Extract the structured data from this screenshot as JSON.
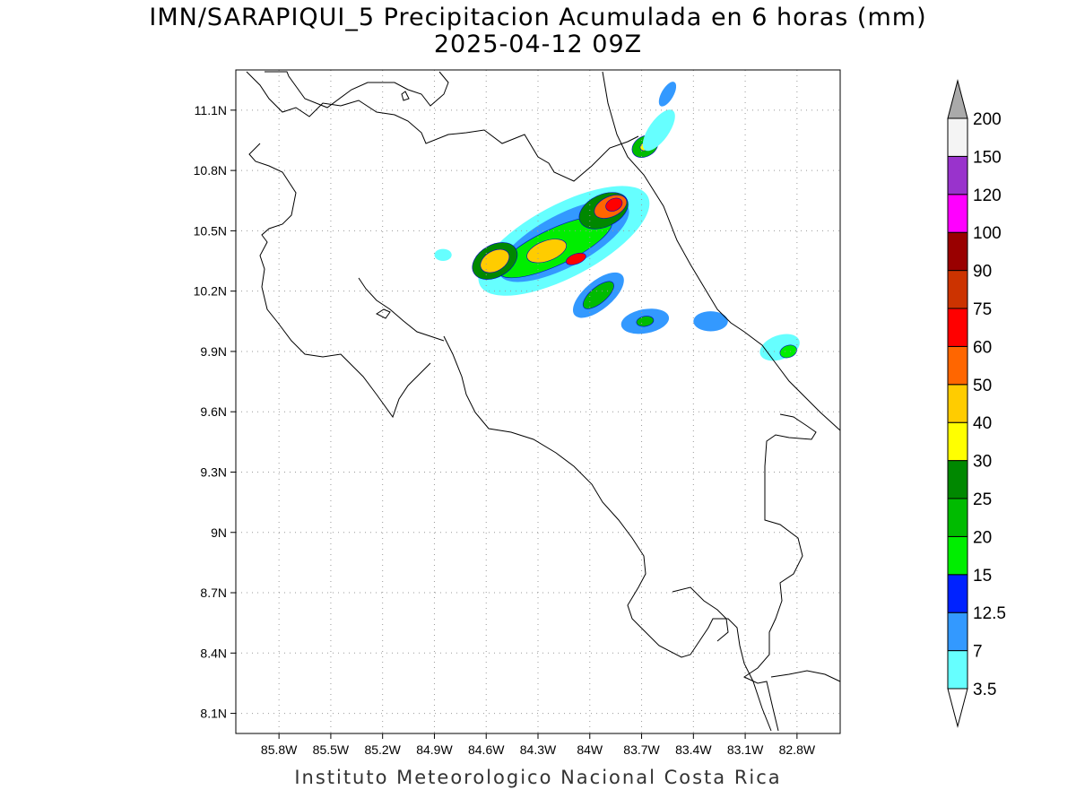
{
  "title": {
    "line1": "IMN/SARAPIQUI_5 Precipitacion Acumulada en 6 horas (mm)",
    "line2": "2025-04-12 09Z"
  },
  "footer": "Instituto Meteorologico Nacional Costa Rica",
  "map": {
    "lon_range": [
      -86.05,
      -82.55
    ],
    "lat_range": [
      8.0,
      11.3
    ],
    "lon_ticks": [
      {
        "v": -85.8,
        "label": "85.8W"
      },
      {
        "v": -85.5,
        "label": "85.5W"
      },
      {
        "v": -85.2,
        "label": "85.2W"
      },
      {
        "v": -84.9,
        "label": "84.9W"
      },
      {
        "v": -84.6,
        "label": "84.6W"
      },
      {
        "v": -84.3,
        "label": "84.3W"
      },
      {
        "v": -84.0,
        "label": "84W"
      },
      {
        "v": -83.7,
        "label": "83.7W"
      },
      {
        "v": -83.4,
        "label": "83.4W"
      },
      {
        "v": -83.1,
        "label": "83.1W"
      },
      {
        "v": -82.8,
        "label": "82.8W"
      }
    ],
    "lat_ticks": [
      {
        "v": 11.1,
        "label": "11.1N"
      },
      {
        "v": 10.8,
        "label": "10.8N"
      },
      {
        "v": 10.5,
        "label": "10.5N"
      },
      {
        "v": 10.2,
        "label": "10.2N"
      },
      {
        "v": 9.9,
        "label": "9.9N"
      },
      {
        "v": 9.6,
        "label": "9.6N"
      },
      {
        "v": 9.3,
        "label": "9.3N"
      },
      {
        "v": 9.0,
        "label": "9N"
      },
      {
        "v": 8.7,
        "label": "8.7N"
      },
      {
        "v": 8.4,
        "label": "8.4N"
      },
      {
        "v": 8.1,
        "label": "8.1N"
      }
    ],
    "grid": true
  },
  "colorbar": {
    "levels": [
      "3.5",
      "7",
      "12.5",
      "15",
      "20",
      "25",
      "30",
      "40",
      "50",
      "60",
      "75",
      "90",
      "100",
      "120",
      "150",
      "200"
    ],
    "colors": [
      "#66ffff",
      "#3399ff",
      "#0022ff",
      "#00ee00",
      "#00bb00",
      "#008800",
      "#ffff00",
      "#ffcc00",
      "#ff6600",
      "#ff0000",
      "#cc3300",
      "#990000",
      "#ff00ff",
      "#9933cc",
      "#f4f4f4"
    ],
    "upper_arrow_color": "#aaaaaa",
    "lower_arrow_color": "#ffffff"
  },
  "precip_cells": [
    {
      "lon": -84.15,
      "lat": 10.45,
      "rx": 0.55,
      "ry": 0.18,
      "rot": -28,
      "level": 0
    },
    {
      "lon": -84.15,
      "lat": 10.45,
      "rx": 0.42,
      "ry": 0.13,
      "rot": -28,
      "level": 1
    },
    {
      "lon": -84.2,
      "lat": 10.42,
      "rx": 0.36,
      "ry": 0.09,
      "rot": -25,
      "level": 3
    },
    {
      "lon": -84.55,
      "lat": 10.35,
      "rx": 0.14,
      "ry": 0.08,
      "rot": -30,
      "level": 5
    },
    {
      "lon": -84.55,
      "lat": 10.35,
      "rx": 0.09,
      "ry": 0.05,
      "rot": -30,
      "level": 7
    },
    {
      "lon": -84.25,
      "lat": 10.4,
      "rx": 0.12,
      "ry": 0.05,
      "rot": -20,
      "level": 7
    },
    {
      "lon": -83.92,
      "lat": 10.6,
      "rx": 0.15,
      "ry": 0.08,
      "rot": -25,
      "level": 5
    },
    {
      "lon": -83.88,
      "lat": 10.62,
      "rx": 0.1,
      "ry": 0.05,
      "rot": -25,
      "level": 8
    },
    {
      "lon": -83.86,
      "lat": 10.63,
      "rx": 0.05,
      "ry": 0.03,
      "rot": -25,
      "level": 9
    },
    {
      "lon": -84.08,
      "lat": 10.36,
      "rx": 0.06,
      "ry": 0.025,
      "rot": -20,
      "level": 9
    },
    {
      "lon": -83.95,
      "lat": 10.18,
      "rx": 0.18,
      "ry": 0.07,
      "rot": -40,
      "level": 1
    },
    {
      "lon": -83.95,
      "lat": 10.18,
      "rx": 0.11,
      "ry": 0.04,
      "rot": -40,
      "level": 4
    },
    {
      "lon": -83.68,
      "lat": 10.05,
      "rx": 0.14,
      "ry": 0.06,
      "rot": -10,
      "level": 1
    },
    {
      "lon": -83.68,
      "lat": 10.05,
      "rx": 0.05,
      "ry": 0.025,
      "rot": -10,
      "level": 4
    },
    {
      "lon": -83.3,
      "lat": 10.05,
      "rx": 0.1,
      "ry": 0.05,
      "rot": 0,
      "level": 1
    },
    {
      "lon": -83.68,
      "lat": 10.92,
      "rx": 0.08,
      "ry": 0.05,
      "rot": -30,
      "level": 4
    },
    {
      "lon": -83.68,
      "lat": 10.92,
      "rx": 0.03,
      "ry": 0.02,
      "rot": -30,
      "level": 6
    },
    {
      "lon": -83.6,
      "lat": 11.0,
      "rx": 0.14,
      "ry": 0.05,
      "rot": -55,
      "level": 0
    },
    {
      "lon": -83.55,
      "lat": 11.18,
      "rx": 0.08,
      "ry": 0.03,
      "rot": -60,
      "level": 1
    },
    {
      "lon": -82.9,
      "lat": 9.92,
      "rx": 0.12,
      "ry": 0.06,
      "rot": -20,
      "level": 0
    },
    {
      "lon": -82.85,
      "lat": 9.9,
      "rx": 0.05,
      "ry": 0.03,
      "rot": -20,
      "level": 3
    },
    {
      "lon": -84.85,
      "lat": 10.38,
      "rx": 0.05,
      "ry": 0.03,
      "rot": 0,
      "level": 0
    }
  ]
}
